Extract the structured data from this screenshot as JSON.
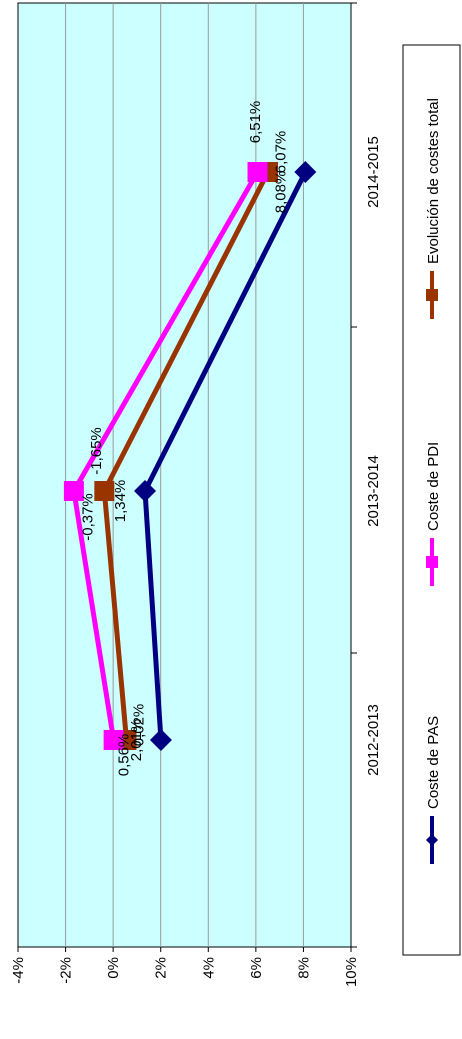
{
  "chart_data": {
    "type": "line",
    "orientation": "rotated-90-clockwise",
    "categories": [
      "2012-2013",
      "2013-2014",
      "2014-2015"
    ],
    "series": [
      {
        "name": "Coste de PAS",
        "values": [
          2.01,
          1.34,
          8.08
        ],
        "labels": [
          "2,01%",
          "1,34%",
          "8,08%"
        ],
        "color": "#000080",
        "marker": "diamond"
      },
      {
        "name": "Coste de PDI",
        "values": [
          0.02,
          -1.65,
          6.07
        ],
        "labels": [
          "0,02%",
          "-1,65%",
          "6,07%"
        ],
        "color": "#ff00ff",
        "marker": "square"
      },
      {
        "name": "Evolución de costes total",
        "values": [
          0.56,
          -0.37,
          6.51
        ],
        "labels": [
          "0,56%",
          "-0,37%",
          "6,51%"
        ],
        "color": "#993300",
        "marker": "square"
      }
    ],
    "ylim": [
      -4,
      10
    ],
    "yticks": [
      -4,
      -2,
      0,
      2,
      4,
      6,
      8,
      10
    ],
    "ytick_labels": [
      "-4%",
      "-2%",
      "0%",
      "2%",
      "4%",
      "6%",
      "8%",
      "10%"
    ],
    "grid": true,
    "plot_background": "#ccffff",
    "legend": "bottom"
  }
}
